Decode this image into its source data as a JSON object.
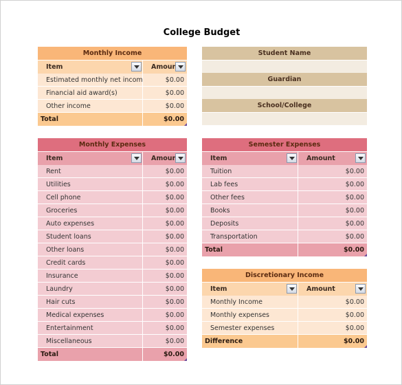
{
  "title": "College Budget",
  "monthly_income": {
    "title": "Monthly Income",
    "headers": [
      "Item",
      "Amount"
    ],
    "rows": [
      [
        "Estimated monthly net income",
        "$0.00"
      ],
      [
        "Financial aid award(s)",
        "$0.00"
      ],
      [
        "Other income",
        "$0.00"
      ]
    ],
    "total": [
      "Total",
      "$0.00"
    ]
  },
  "student_info": {
    "labels": [
      "Student Name",
      "Guardian",
      "School/College"
    ]
  },
  "monthly_expenses": {
    "title": "Monthly Expenses",
    "headers": [
      "Item",
      "Amount"
    ],
    "rows": [
      [
        "Rent",
        "$0.00"
      ],
      [
        "Utilities",
        "$0.00"
      ],
      [
        "Cell phone",
        "$0.00"
      ],
      [
        "Groceries",
        "$0.00"
      ],
      [
        "Auto expenses",
        "$0.00"
      ],
      [
        "Student loans",
        "$0.00"
      ],
      [
        "Other loans",
        "$0.00"
      ],
      [
        "Credit cards",
        "$0.00"
      ],
      [
        "Insurance",
        "$0.00"
      ],
      [
        "Laundry",
        "$0.00"
      ],
      [
        "Hair cuts",
        "$0.00"
      ],
      [
        "Medical expenses",
        "$0.00"
      ],
      [
        "Entertainment",
        "$0.00"
      ],
      [
        "Miscellaneous",
        "$0.00"
      ]
    ],
    "total": [
      "Total",
      "$0.00"
    ]
  },
  "semester_expenses": {
    "title": "Semester Expenses",
    "headers": [
      "Item",
      "Amount"
    ],
    "rows": [
      [
        "Tuition",
        "$0.00"
      ],
      [
        "Lab fees",
        "$0.00"
      ],
      [
        "Other fees",
        "$0.00"
      ],
      [
        "Books",
        "$0.00"
      ],
      [
        "Deposits",
        "$0.00"
      ],
      [
        "Transportation",
        "$0.00"
      ]
    ],
    "total": [
      "Total",
      "$0.00"
    ]
  },
  "discretionary_income": {
    "title": "Discretionary Income",
    "headers": [
      "Item",
      "Amount"
    ],
    "rows": [
      [
        "Monthly Income",
        "$0.00"
      ],
      [
        "Monthly expenses",
        "$0.00"
      ],
      [
        "Semester expenses",
        "$0.00"
      ]
    ],
    "total": [
      "Difference",
      "$0.00"
    ]
  }
}
